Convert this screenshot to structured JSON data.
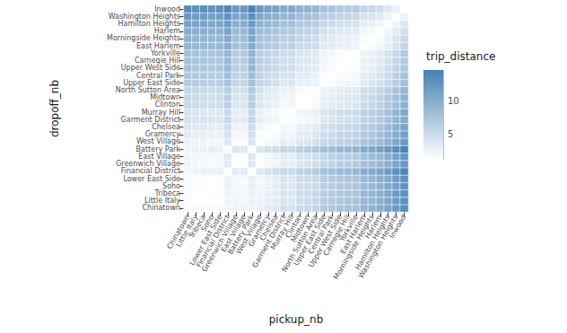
{
  "chart_data": {
    "type": "heatmap",
    "x_label": "pickup_nb",
    "y_label": "dropoff_nb",
    "x_categories": [
      "Chinatown",
      "Little Italy",
      "Tribeca",
      "Soho",
      "Lower East Side",
      "Financial District",
      "Greenwich Village",
      "East Village",
      "Battery Park",
      "West Village",
      "Gramercy",
      "Chelsea",
      "Garment District",
      "Murray Hill",
      "Clinton",
      "Midtown",
      "North Sutton Area",
      "Upper East Side",
      "Central Park",
      "Upper West Side",
      "Carnegie Hill",
      "Yorkville",
      "East Harlem",
      "Morningside Heights",
      "Harlem",
      "Hamilton Heights",
      "Washington Heights",
      "Inwood"
    ],
    "y_categories": [
      "Chinatown",
      "Little Italy",
      "Tribeca",
      "Soho",
      "Lower East Side",
      "Financial District",
      "Greenwich Village",
      "East Village",
      "Battery Park",
      "West Village",
      "Gramercy",
      "Chelsea",
      "Garment District",
      "Murray Hill",
      "Clinton",
      "Midtown",
      "North Sutton Area",
      "Upper East Side",
      "Central Park",
      "Upper West Side",
      "Carnegie Hill",
      "Yorkville",
      "East Harlem",
      "Morningside Heights",
      "Harlem",
      "Hamilton Heights",
      "Washington Heights",
      "Inwood"
    ],
    "cells": [
      [
        1.0,
        1.3,
        1.4,
        1.6,
        1.5,
        1.9,
        2.3,
        2.2,
        2.2,
        2.5,
        3.1,
        3.5,
        4.3,
        4.1,
        5.1,
        5.2,
        5.6,
        6.8,
        7.1,
        7.6,
        7.7,
        7.9,
        9.1,
        9.4,
        10.0,
        11.0,
        12.2,
        13.6
      ],
      [
        1.3,
        1.0,
        1.1,
        1.3,
        1.2,
        2.2,
        2.0,
        1.9,
        2.5,
        2.2,
        2.8,
        3.2,
        4.0,
        3.8,
        4.8,
        4.9,
        5.3,
        6.5,
        6.8,
        7.3,
        7.4,
        7.6,
        8.8,
        9.1,
        9.7,
        10.7,
        11.9,
        13.3
      ],
      [
        1.4,
        1.1,
        1.0,
        1.2,
        1.1,
        2.3,
        1.9,
        1.8,
        2.6,
        2.1,
        2.7,
        3.1,
        3.9,
        3.7,
        4.7,
        4.8,
        5.2,
        6.4,
        6.7,
        7.2,
        7.3,
        7.5,
        8.7,
        9.0,
        9.6,
        10.6,
        11.8,
        13.2
      ],
      [
        1.6,
        1.3,
        1.2,
        1.0,
        1.1,
        2.5,
        1.7,
        1.6,
        2.8,
        1.9,
        2.5,
        2.9,
        3.7,
        3.5,
        4.5,
        4.6,
        5.0,
        6.2,
        6.5,
        7.0,
        7.1,
        7.3,
        8.5,
        8.8,
        9.4,
        10.4,
        11.6,
        13.0
      ],
      [
        1.5,
        1.2,
        1.1,
        1.1,
        1.0,
        2.4,
        1.8,
        1.7,
        2.7,
        2.0,
        2.6,
        3.0,
        3.8,
        3.6,
        4.6,
        4.7,
        5.1,
        6.3,
        6.6,
        7.1,
        7.2,
        7.4,
        8.6,
        8.9,
        9.5,
        10.5,
        11.7,
        13.1
      ],
      [
        1.9,
        2.2,
        2.3,
        2.5,
        2.4,
        1.0,
        3.2,
        3.1,
        1.3,
        3.4,
        4.0,
        4.4,
        5.2,
        5.0,
        6.0,
        6.1,
        6.5,
        7.7,
        8.0,
        8.5,
        8.6,
        8.8,
        10.0,
        10.3,
        10.9,
        11.9,
        13.1,
        14.5
      ],
      [
        2.3,
        2.0,
        1.9,
        1.7,
        1.8,
        3.2,
        1.0,
        1.1,
        3.5,
        1.2,
        1.8,
        2.2,
        3.0,
        2.8,
        3.8,
        3.9,
        4.3,
        5.5,
        5.8,
        6.3,
        6.4,
        6.6,
        7.8,
        8.1,
        8.7,
        9.7,
        10.9,
        12.3
      ],
      [
        2.2,
        1.9,
        1.8,
        1.6,
        1.7,
        3.1,
        1.1,
        1.0,
        3.4,
        1.3,
        1.9,
        2.3,
        3.1,
        2.9,
        3.9,
        4.0,
        4.4,
        5.6,
        5.9,
        6.4,
        6.5,
        6.7,
        7.9,
        8.2,
        8.8,
        9.8,
        11.0,
        12.4
      ],
      [
        2.2,
        2.5,
        2.6,
        2.8,
        2.7,
        1.3,
        3.5,
        3.4,
        1.0,
        3.7,
        4.3,
        4.7,
        5.5,
        5.3,
        6.3,
        6.4,
        6.8,
        8.0,
        8.3,
        8.8,
        8.9,
        9.1,
        10.3,
        10.6,
        11.2,
        12.2,
        13.4,
        14.8
      ],
      [
        2.5,
        2.2,
        2.1,
        1.9,
        2.0,
        3.4,
        1.2,
        1.3,
        3.7,
        1.0,
        1.6,
        2.0,
        2.8,
        2.6,
        3.6,
        3.7,
        4.1,
        5.3,
        5.6,
        6.1,
        6.2,
        6.4,
        7.6,
        7.9,
        8.5,
        9.5,
        10.7,
        12.1
      ],
      [
        3.1,
        2.8,
        2.7,
        2.5,
        2.6,
        4.0,
        1.8,
        1.9,
        4.3,
        1.6,
        1.0,
        1.4,
        2.2,
        2.0,
        3.0,
        3.1,
        3.5,
        4.7,
        5.0,
        5.5,
        5.6,
        5.8,
        7.0,
        7.3,
        7.9,
        8.9,
        10.1,
        11.5
      ],
      [
        3.5,
        3.2,
        3.1,
        2.9,
        3.0,
        4.4,
        2.2,
        2.3,
        4.7,
        2.0,
        1.4,
        1.0,
        1.8,
        1.6,
        2.6,
        2.7,
        3.1,
        4.3,
        4.6,
        5.1,
        5.2,
        5.4,
        6.6,
        6.9,
        7.5,
        8.5,
        9.7,
        11.1
      ],
      [
        4.3,
        4.0,
        3.9,
        3.7,
        3.8,
        5.2,
        3.0,
        3.1,
        5.5,
        2.8,
        2.2,
        1.8,
        1.0,
        1.2,
        1.8,
        1.9,
        2.3,
        3.5,
        3.8,
        4.3,
        4.4,
        4.6,
        5.8,
        6.1,
        6.7,
        7.7,
        8.9,
        10.3
      ],
      [
        4.1,
        3.8,
        3.7,
        3.5,
        3.6,
        5.0,
        2.8,
        2.9,
        5.3,
        2.6,
        2.0,
        1.6,
        1.2,
        1.0,
        2.0,
        2.1,
        2.5,
        3.7,
        4.0,
        4.5,
        4.6,
        4.8,
        6.0,
        6.3,
        6.9,
        7.9,
        9.1,
        10.5
      ],
      [
        5.1,
        4.8,
        4.7,
        4.5,
        4.6,
        6.0,
        3.8,
        3.9,
        6.3,
        3.6,
        3.0,
        2.6,
        1.8,
        2.0,
        1.0,
        1.1,
        1.5,
        2.7,
        3.0,
        3.5,
        3.6,
        3.8,
        5.0,
        5.3,
        5.9,
        6.9,
        8.1,
        9.5
      ],
      [
        5.2,
        4.9,
        4.8,
        4.6,
        4.7,
        6.1,
        3.9,
        4.0,
        6.4,
        3.7,
        3.1,
        2.7,
        1.9,
        2.1,
        1.1,
        1.0,
        1.4,
        2.6,
        2.9,
        3.4,
        3.5,
        3.7,
        4.9,
        5.2,
        5.8,
        6.8,
        8.0,
        9.4
      ],
      [
        5.6,
        5.3,
        5.2,
        5.0,
        5.1,
        6.5,
        4.3,
        4.4,
        6.8,
        4.1,
        3.5,
        3.1,
        2.3,
        2.5,
        1.5,
        1.4,
        1.0,
        2.2,
        2.5,
        3.0,
        3.1,
        3.3,
        4.5,
        4.8,
        5.4,
        6.4,
        7.6,
        9.0
      ],
      [
        6.8,
        6.5,
        6.4,
        6.2,
        6.3,
        7.7,
        5.5,
        5.6,
        8.0,
        5.3,
        4.7,
        4.3,
        3.5,
        3.7,
        2.7,
        2.6,
        2.2,
        1.0,
        1.3,
        1.8,
        1.9,
        2.1,
        3.3,
        3.6,
        4.2,
        5.2,
        6.4,
        7.8
      ],
      [
        7.1,
        6.8,
        6.7,
        6.5,
        6.6,
        8.0,
        5.8,
        5.9,
        8.3,
        5.6,
        5.0,
        4.6,
        3.8,
        4.0,
        3.0,
        2.9,
        2.5,
        1.3,
        1.0,
        1.5,
        1.6,
        1.8,
        3.0,
        3.3,
        3.9,
        4.9,
        6.1,
        7.5
      ],
      [
        7.6,
        7.3,
        7.2,
        7.0,
        7.1,
        8.5,
        6.3,
        6.4,
        8.8,
        6.1,
        5.5,
        5.1,
        4.3,
        4.5,
        3.5,
        3.4,
        3.0,
        1.8,
        1.5,
        1.0,
        1.1,
        1.3,
        2.5,
        2.8,
        3.4,
        4.4,
        5.6,
        7.0
      ],
      [
        7.7,
        7.4,
        7.3,
        7.1,
        7.2,
        8.6,
        6.4,
        6.5,
        8.9,
        6.2,
        5.6,
        5.2,
        4.4,
        4.6,
        3.6,
        3.5,
        3.1,
        1.9,
        1.6,
        1.1,
        1.0,
        1.2,
        2.4,
        2.7,
        3.3,
        4.3,
        5.5,
        6.9
      ],
      [
        7.9,
        7.6,
        7.5,
        7.3,
        7.4,
        8.8,
        6.6,
        6.7,
        9.1,
        6.4,
        5.8,
        5.4,
        4.6,
        4.8,
        3.8,
        3.7,
        3.3,
        2.1,
        1.8,
        1.3,
        1.2,
        1.0,
        2.2,
        2.5,
        3.1,
        4.1,
        5.3,
        6.7
      ],
      [
        9.1,
        8.8,
        8.7,
        8.5,
        8.6,
        10.0,
        7.8,
        7.9,
        10.3,
        7.6,
        7.0,
        6.6,
        5.8,
        6.0,
        5.0,
        4.9,
        4.5,
        3.3,
        3.0,
        2.5,
        2.4,
        2.2,
        1.0,
        1.3,
        1.9,
        2.9,
        4.1,
        5.5
      ],
      [
        9.4,
        9.1,
        9.0,
        8.8,
        8.9,
        10.3,
        8.1,
        8.2,
        10.6,
        7.9,
        7.3,
        6.9,
        6.1,
        6.3,
        5.3,
        5.2,
        4.8,
        3.6,
        3.3,
        2.8,
        2.7,
        2.5,
        1.3,
        1.0,
        1.6,
        2.6,
        3.8,
        5.2
      ],
      [
        10.0,
        9.7,
        9.6,
        9.4,
        9.5,
        10.9,
        8.7,
        8.8,
        11.2,
        8.5,
        7.9,
        7.5,
        6.7,
        6.9,
        5.9,
        5.8,
        5.4,
        4.2,
        3.9,
        3.4,
        3.3,
        3.1,
        1.9,
        1.6,
        1.0,
        2.0,
        3.2,
        4.6
      ],
      [
        11.0,
        10.7,
        10.6,
        10.4,
        10.5,
        11.9,
        9.7,
        9.8,
        12.2,
        9.5,
        8.9,
        8.5,
        7.7,
        7.9,
        6.9,
        6.8,
        6.4,
        5.2,
        4.9,
        4.4,
        4.3,
        4.1,
        2.9,
        2.6,
        2.0,
        1.0,
        2.2,
        3.6
      ],
      [
        12.2,
        11.9,
        11.8,
        11.6,
        11.7,
        13.1,
        10.9,
        11.0,
        13.4,
        10.7,
        10.1,
        9.7,
        8.9,
        9.1,
        8.1,
        8.0,
        7.6,
        6.4,
        6.1,
        5.6,
        5.5,
        5.3,
        4.1,
        3.8,
        3.2,
        2.2,
        1.0,
        2.4
      ],
      [
        13.6,
        13.3,
        13.2,
        13.0,
        13.1,
        14.5,
        12.3,
        12.4,
        14.8,
        12.1,
        11.5,
        11.1,
        10.3,
        10.5,
        9.5,
        9.4,
        9.0,
        7.8,
        7.5,
        7.0,
        6.9,
        6.7,
        5.5,
        5.2,
        4.6,
        3.6,
        2.4,
        1.0
      ]
    ],
    "colorbar": {
      "title": "trip_distance",
      "range": [
        1.0,
        14.8
      ],
      "ticks": [
        5,
        10
      ],
      "colors": [
        "#ffffff",
        "#4682b4"
      ]
    }
  }
}
